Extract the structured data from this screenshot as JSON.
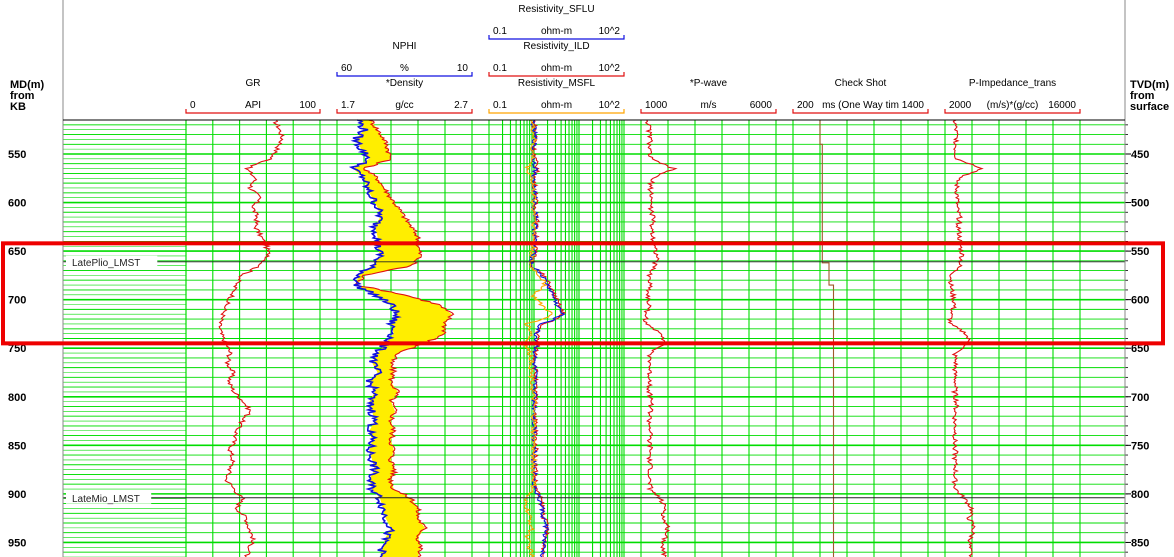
{
  "left_axis_title": [
    "MD(m)",
    "from",
    "KB"
  ],
  "right_axis_title": [
    "TVD(m)",
    "from",
    "surface"
  ],
  "colors": {
    "grid": "#00dd00",
    "curve_red": "#e01010",
    "curve_blue": "#1010e0",
    "fill_yellow": "#ffee00",
    "curve_orange": "#ffa500",
    "curve_brown": "#a05a2a",
    "highlight": "#ee0000",
    "marker_line": "#222222"
  },
  "tracks": [
    {
      "id": "gr",
      "scales": [
        {
          "name": "GR",
          "unit": "API",
          "min": "0",
          "max": "100",
          "color": "#e01010"
        }
      ]
    },
    {
      "id": "density",
      "scales": [
        {
          "name": "NPHI",
          "unit": "%",
          "min": "60",
          "max": "10",
          "color": "#1010e0"
        },
        {
          "name": "*Density",
          "unit": "g/cc",
          "min": "1.7",
          "max": "2.7",
          "color": "#e01010"
        }
      ]
    },
    {
      "id": "resistivity",
      "scales": [
        {
          "name": "Resistivity_SFLU",
          "unit": "ohm-m",
          "min": "0.1",
          "max": "10^2",
          "color": "#1010e0"
        },
        {
          "name": "Resistivity_ILD",
          "unit": "ohm-m",
          "min": "0.1",
          "max": "10^2",
          "color": "#e01010"
        },
        {
          "name": "Resistivity_MSFL",
          "unit": "ohm-m",
          "min": "0.1",
          "max": "10^2",
          "color": "#ffa500"
        }
      ]
    },
    {
      "id": "pwave",
      "scales": [
        {
          "name": "*P-wave",
          "unit": "m/s",
          "min": "1000",
          "max": "6000",
          "color": "#e01010"
        }
      ]
    },
    {
      "id": "checkshot",
      "scales": [
        {
          "name": "Check Shot",
          "unit": "ms (One Way tim",
          "min": "200",
          "max": "1400",
          "color": "#e01010"
        }
      ]
    },
    {
      "id": "pimp",
      "scales": [
        {
          "name": "P-Impedance_trans",
          "unit": "(m/s)*(g/cc)",
          "min": "2000",
          "max": "16000",
          "color": "#e01010"
        }
      ]
    }
  ],
  "chart_data": {
    "type": "line",
    "title": "",
    "md_axis": {
      "label": "MD(m) from KB",
      "range": [
        515,
        965
      ],
      "ticks": [
        550,
        600,
        650,
        700,
        750,
        800,
        850,
        900,
        950
      ]
    },
    "tvd_axis": {
      "label": "TVD(m) from surface",
      "ticks": [
        450,
        500,
        550,
        600,
        650,
        700,
        750,
        800,
        850
      ],
      "tvd_at_md_700": 600
    },
    "markers": [
      {
        "name": "LatePlio_LMST",
        "md": 661
      },
      {
        "name": "LateMio_LMST",
        "md": 904
      }
    ],
    "highlight_interval_md": [
      642,
      745
    ],
    "grid": "on",
    "series": [
      {
        "name": "GR",
        "unit": "API",
        "track": "gr",
        "range": [
          0,
          100
        ],
        "md": [
          515,
          525,
          535,
          545,
          555,
          565,
          575,
          585,
          595,
          605,
          615,
          625,
          635,
          645,
          655,
          665,
          675,
          685,
          695,
          705,
          715,
          725,
          735,
          745,
          755,
          765,
          775,
          785,
          795,
          805,
          815,
          825,
          835,
          845,
          855,
          865,
          875,
          885,
          895,
          905,
          915,
          925,
          935,
          945,
          955,
          965
        ],
        "values": [
          66,
          70,
          72,
          68,
          63,
          45,
          52,
          48,
          55,
          50,
          53,
          52,
          56,
          60,
          62,
          55,
          42,
          37,
          35,
          30,
          28,
          25,
          26,
          30,
          33,
          31,
          35,
          32,
          36,
          43,
          48,
          42,
          38,
          36,
          33,
          35,
          33,
          30,
          36,
          42,
          38,
          45,
          47,
          50,
          48,
          45
        ]
      },
      {
        "name": "*Density",
        "unit": "g/cc",
        "track": "density",
        "range": [
          1.7,
          2.7
        ],
        "md": [
          515,
          525,
          535,
          545,
          555,
          565,
          575,
          585,
          595,
          605,
          615,
          625,
          635,
          645,
          655,
          665,
          675,
          685,
          695,
          705,
          715,
          725,
          735,
          745,
          755,
          765,
          775,
          785,
          795,
          805,
          815,
          825,
          835,
          845,
          855,
          865,
          875,
          885,
          895,
          905,
          915,
          925,
          935,
          945,
          955,
          965
        ],
        "values": [
          1.95,
          2.0,
          2.05,
          2.08,
          2.1,
          1.9,
          2.0,
          2.05,
          2.1,
          2.15,
          2.2,
          2.25,
          2.3,
          2.3,
          2.32,
          2.25,
          1.9,
          1.85,
          2.2,
          2.45,
          2.55,
          2.5,
          2.5,
          2.35,
          2.15,
          2.1,
          2.12,
          2.1,
          2.15,
          2.1,
          2.13,
          2.1,
          2.12,
          2.1,
          2.12,
          2.1,
          2.13,
          2.1,
          2.12,
          2.25,
          2.3,
          2.3,
          2.35,
          2.3,
          2.32,
          2.3
        ]
      },
      {
        "name": "NPHI",
        "unit": "%",
        "track": "density",
        "range": [
          60,
          10
        ],
        "md": [
          515,
          525,
          535,
          545,
          555,
          565,
          575,
          585,
          595,
          605,
          615,
          625,
          635,
          645,
          655,
          665,
          675,
          685,
          695,
          705,
          715,
          725,
          735,
          745,
          755,
          765,
          775,
          785,
          795,
          805,
          815,
          825,
          835,
          845,
          855,
          865,
          875,
          885,
          895,
          905,
          915,
          925,
          935,
          945,
          955,
          965
        ],
        "values": [
          52,
          50,
          53,
          51,
          48,
          54,
          50,
          49,
          47,
          45,
          44,
          46,
          45,
          45,
          44,
          47,
          52,
          53,
          46,
          40,
          38,
          40,
          39,
          42,
          45,
          47,
          45,
          48,
          46,
          48,
          47,
          46,
          48,
          47,
          48,
          47,
          46,
          48,
          47,
          44,
          43,
          42,
          40,
          42,
          43,
          44
        ]
      },
      {
        "name": "Resistivity_ILD",
        "unit": "ohm-m",
        "track": "resistivity",
        "range": [
          0.1,
          100
        ],
        "md": [
          515,
          525,
          535,
          545,
          555,
          565,
          575,
          585,
          595,
          605,
          615,
          625,
          635,
          645,
          655,
          665,
          675,
          685,
          695,
          705,
          715,
          725,
          735,
          745,
          755,
          765,
          775,
          785,
          795,
          805,
          815,
          825,
          835,
          845,
          855,
          865,
          875,
          885,
          895,
          905,
          915,
          925,
          935,
          945,
          955,
          965
        ],
        "values": [
          1.0,
          1.05,
          1.1,
          1.0,
          1.05,
          1.2,
          1.0,
          1.05,
          1.1,
          1.05,
          1.2,
          1.1,
          1.1,
          1.1,
          1.0,
          0.9,
          1.6,
          2.2,
          2.8,
          3.5,
          4.5,
          1.5,
          1.2,
          1.2,
          1.1,
          1.05,
          1.1,
          1.05,
          1.1,
          1.05,
          1.1,
          1.05,
          1.1,
          1.05,
          1.1,
          1.05,
          1.1,
          1.05,
          1.1,
          1.4,
          1.6,
          1.7,
          2.0,
          1.8,
          1.7,
          1.6
        ]
      },
      {
        "name": "Resistivity_SFLU",
        "unit": "ohm-m",
        "track": "resistivity",
        "range": [
          0.1,
          100
        ],
        "md": [
          515,
          525,
          535,
          545,
          555,
          565,
          575,
          585,
          595,
          605,
          615,
          625,
          635,
          645,
          655,
          665,
          675,
          685,
          695,
          705,
          715,
          725,
          735,
          745,
          755,
          765,
          775,
          785,
          795,
          805,
          815,
          825,
          835,
          845,
          855,
          865,
          875,
          885,
          895,
          905,
          915,
          925,
          935,
          945,
          955,
          965
        ],
        "values": [
          0.95,
          1.0,
          1.05,
          0.95,
          1.0,
          1.1,
          0.95,
          1.0,
          1.05,
          1.0,
          1.15,
          1.05,
          1.05,
          1.0,
          0.95,
          0.85,
          1.5,
          2.0,
          2.6,
          3.2,
          4.2,
          1.4,
          1.1,
          1.15,
          1.05,
          1.0,
          1.05,
          1.0,
          1.05,
          1.0,
          1.05,
          1.0,
          1.05,
          1.0,
          1.05,
          1.0,
          1.05,
          1.0,
          1.05,
          1.3,
          1.5,
          1.6,
          1.9,
          1.7,
          1.6,
          1.5
        ]
      },
      {
        "name": "Resistivity_MSFL",
        "unit": "ohm-m",
        "track": "resistivity",
        "range": [
          0.1,
          100
        ],
        "md": [
          515,
          525,
          535,
          545,
          555,
          565,
          575,
          585,
          595,
          605,
          615,
          625,
          635,
          645,
          655,
          665,
          675,
          685,
          695,
          705,
          715,
          725,
          735,
          745,
          755,
          765,
          775,
          785,
          795,
          805,
          815,
          825,
          835,
          845,
          855,
          865,
          875,
          885,
          895,
          905,
          915,
          925,
          935,
          945,
          955,
          965
        ],
        "values": [
          0.9,
          0.95,
          1.0,
          0.9,
          0.95,
          0.7,
          0.9,
          0.95,
          1.0,
          0.95,
          1.1,
          1.0,
          1.0,
          0.95,
          0.9,
          0.8,
          1.3,
          1.8,
          0.9,
          1.4,
          2.4,
          0.7,
          0.9,
          0.6,
          0.8,
          0.9,
          0.85,
          0.95,
          0.9,
          1.0,
          0.95,
          1.0,
          0.95,
          1.0,
          0.95,
          1.0,
          0.95,
          1.0,
          0.95,
          0.6,
          0.7,
          0.8,
          0.9,
          0.7,
          0.8,
          0.9
        ]
      },
      {
        "name": "*P-wave",
        "unit": "m/s",
        "track": "pwave",
        "range": [
          1000,
          6000
        ],
        "md": [
          515,
          525,
          535,
          545,
          555,
          565,
          575,
          585,
          595,
          605,
          615,
          625,
          635,
          645,
          655,
          665,
          675,
          685,
          695,
          705,
          715,
          725,
          735,
          745,
          755,
          765,
          775,
          785,
          795,
          805,
          815,
          825,
          835,
          845,
          855,
          865,
          875,
          885,
          895,
          905,
          915,
          925,
          935,
          945,
          955,
          965
        ],
        "values": [
          1250,
          1300,
          1350,
          1300,
          1350,
          2200,
          1400,
          1350,
          1400,
          1350,
          1450,
          1400,
          1450,
          1500,
          1600,
          1500,
          1300,
          1350,
          1250,
          1300,
          1200,
          1150,
          1800,
          1900,
          1300,
          1350,
          1300,
          1350,
          1300,
          1400,
          1350,
          1300,
          1350,
          1300,
          1350,
          1300,
          1350,
          1300,
          1350,
          1700,
          1900,
          1800,
          2000,
          1900,
          1800,
          1900
        ]
      },
      {
        "name": "Check Shot",
        "unit": "ms (One Way tim",
        "track": "checkshot",
        "range": [
          200,
          1400
        ],
        "md": [
          515,
          540,
          540,
          662,
          662,
          685,
          685,
          965
        ],
        "values": [
          440,
          440,
          460,
          460,
          520,
          520,
          560,
          560
        ]
      },
      {
        "name": "P-Impedance_trans",
        "unit": "(m/s)*(g/cc)",
        "track": "pimp",
        "range": [
          2000,
          16000
        ],
        "md": [
          515,
          525,
          535,
          545,
          555,
          565,
          575,
          585,
          595,
          605,
          615,
          625,
          635,
          645,
          655,
          665,
          675,
          685,
          695,
          705,
          715,
          725,
          735,
          745,
          755,
          765,
          775,
          785,
          795,
          805,
          815,
          825,
          835,
          845,
          855,
          865,
          875,
          885,
          895,
          905,
          915,
          925,
          935,
          945,
          955,
          965
        ],
        "values": [
          3000,
          3100,
          3200,
          3100,
          3200,
          6000,
          3300,
          3200,
          3300,
          3200,
          3500,
          3400,
          3500,
          3600,
          3800,
          3500,
          2700,
          2600,
          2800,
          3000,
          2600,
          2500,
          4200,
          4500,
          3000,
          3100,
          3000,
          3100,
          3000,
          3200,
          3100,
          3000,
          3100,
          3000,
          3100,
          3000,
          3100,
          3000,
          3100,
          4000,
          4800,
          4500,
          5000,
          4700,
          4500,
          4700
        ]
      }
    ]
  }
}
